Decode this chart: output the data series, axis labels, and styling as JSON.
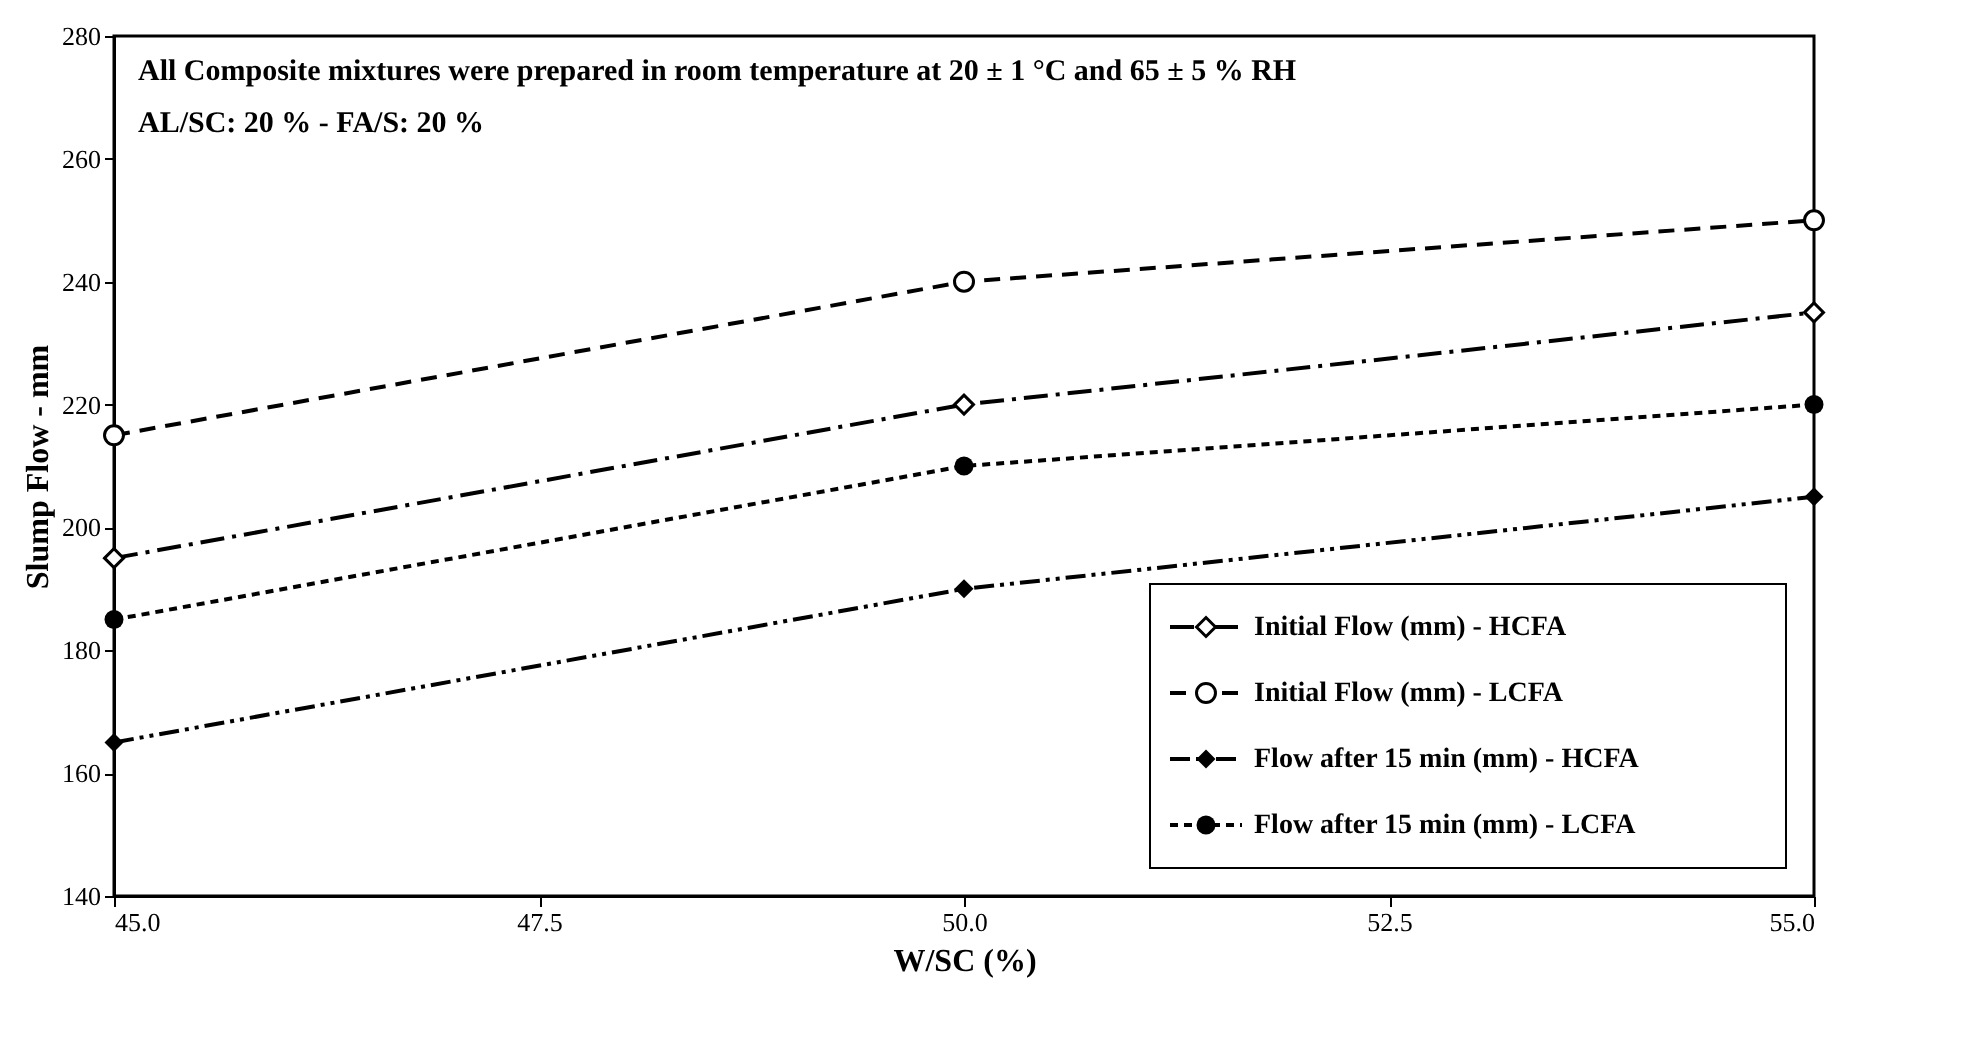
{
  "chart_data": {
    "type": "line",
    "xlabel": "W/SC (%)",
    "ylabel": "Slump Flow - mm",
    "x": [
      45.0,
      50.0,
      55.0
    ],
    "xlim": [
      45.0,
      55.0
    ],
    "xticks": [
      {
        "value": 45,
        "label": "45.0"
      },
      {
        "value": 47.5,
        "label": "47.5"
      },
      {
        "value": 50,
        "label": "50.0"
      },
      {
        "value": 52.5,
        "label": "52.5"
      },
      {
        "value": 55,
        "label": "55.0"
      }
    ],
    "ylim": [
      140,
      280
    ],
    "yticks": [
      140,
      160,
      180,
      200,
      220,
      240,
      260,
      280
    ],
    "grid": false,
    "legend": "bottom right",
    "annotations": [
      "All Composite mixtures were prepared in room temperature at 20 ± 1 °C and 65 ± 5 % RH",
      "AL/SC: 20 % - FA/S: 20 %"
    ],
    "series": [
      {
        "name": "Initial Flow (mm) - HCFA",
        "color": "#000000",
        "values": [
          195,
          220,
          235
        ],
        "marker": "diamond_open",
        "line_style": "dashdot"
      },
      {
        "name": "Initial Flow (mm) - LCFA",
        "color": "#000000",
        "values": [
          215,
          240,
          250
        ],
        "marker": "circle_open",
        "line_style": "dashed"
      },
      {
        "name": "Flow after 15 min (mm) - HCFA",
        "color": "#000000",
        "values": [
          165,
          190,
          205
        ],
        "marker": "diamond",
        "line_style": "dashdotdot"
      },
      {
        "name": "Flow after 15 min (mm) - LCFA",
        "color": "#000000",
        "values": [
          185,
          210,
          220
        ],
        "marker": "circle",
        "line_style": "dotted"
      }
    ]
  }
}
